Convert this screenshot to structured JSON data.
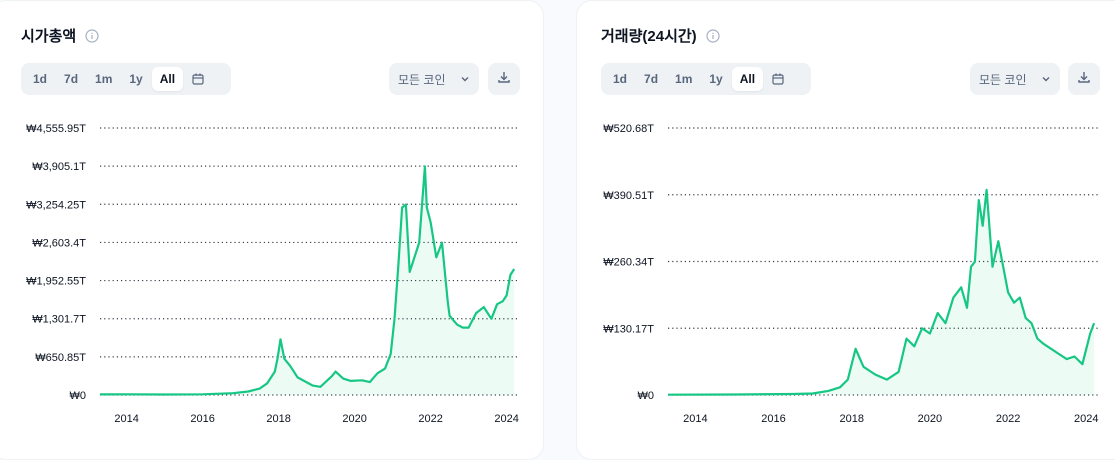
{
  "cards": [
    {
      "title": "시가총액",
      "ranges": [
        "1d",
        "7d",
        "1m",
        "1y",
        "All"
      ],
      "active_range": "All",
      "coin_filter": "모든 코인",
      "icons": {
        "info": "info-icon",
        "calendar": "calendar-icon",
        "chevron": "chevron-down-icon",
        "download": "download-icon"
      }
    },
    {
      "title": "거래량(24시간)",
      "ranges": [
        "1d",
        "7d",
        "1m",
        "1y",
        "All"
      ],
      "active_range": "All",
      "coin_filter": "모든 코인",
      "icons": {
        "info": "info-icon",
        "calendar": "calendar-icon",
        "chevron": "chevron-down-icon",
        "download": "download-icon"
      }
    }
  ],
  "colors": {
    "line": "#16c784",
    "grid": "#3a3f4a",
    "text": "#0d1421",
    "muted": "#58667e"
  },
  "chart_data": [
    {
      "type": "area",
      "title": "시가총액",
      "currency": "₩",
      "y_ticks": [
        "₩0",
        "₩650.85T",
        "₩1,301.7T",
        "₩1,952.55T",
        "₩2,603.4T",
        "₩3,254.25T",
        "₩3,905.1T",
        "₩4,555.95T"
      ],
      "x_ticks": [
        "2014",
        "2016",
        "2018",
        "2020",
        "2022",
        "2024"
      ],
      "ylim": [
        0,
        4555.95
      ],
      "xlim": [
        2013.3,
        2024.3
      ],
      "grid": "dotted horizontal",
      "unit": "T",
      "series": [
        {
          "x": [
            2013.3,
            2014.0,
            2015.0,
            2016.0,
            2016.8,
            2017.2,
            2017.5,
            2017.7,
            2017.9,
            2017.97,
            2018.05,
            2018.15,
            2018.3,
            2018.5,
            2018.9,
            2019.1,
            2019.4,
            2019.5,
            2019.7,
            2019.9,
            2020.2,
            2020.4,
            2020.6,
            2020.8,
            2020.95,
            2021.05,
            2021.15,
            2021.25,
            2021.35,
            2021.45,
            2021.55,
            2021.7,
            2021.85,
            2021.9,
            2022.0,
            2022.15,
            2022.3,
            2022.45,
            2022.5,
            2022.7,
            2022.85,
            2023.0,
            2023.2,
            2023.4,
            2023.6,
            2023.75,
            2023.9,
            2024.0,
            2024.1,
            2024.2
          ],
          "y": [
            10,
            12,
            8,
            12,
            30,
            60,
            110,
            200,
            400,
            620,
            950,
            620,
            500,
            300,
            160,
            140,
            320,
            400,
            280,
            240,
            250,
            220,
            370,
            450,
            700,
            1300,
            2200,
            3200,
            3250,
            2100,
            2300,
            2600,
            3900,
            3200,
            2950,
            2350,
            2600,
            1600,
            1350,
            1200,
            1150,
            1150,
            1400,
            1500,
            1300,
            1550,
            1600,
            1700,
            2050,
            2150
          ]
        }
      ]
    },
    {
      "type": "area",
      "title": "거래량(24시간)",
      "currency": "₩",
      "y_ticks": [
        "₩0",
        "₩130.17T",
        "₩260.34T",
        "₩390.51T",
        "₩520.68T"
      ],
      "x_ticks": [
        "2014",
        "2016",
        "2018",
        "2020",
        "2022",
        "2024"
      ],
      "ylim": [
        0,
        520.68
      ],
      "xlim": [
        2013.3,
        2024.3
      ],
      "grid": "dotted horizontal",
      "unit": "T",
      "series": [
        {
          "x": [
            2013.3,
            2015.0,
            2016.5,
            2017.0,
            2017.4,
            2017.7,
            2017.9,
            2018.0,
            2018.1,
            2018.3,
            2018.6,
            2018.9,
            2019.2,
            2019.4,
            2019.6,
            2019.8,
            2020.0,
            2020.2,
            2020.4,
            2020.6,
            2020.8,
            2020.95,
            2021.05,
            2021.15,
            2021.25,
            2021.35,
            2021.45,
            2021.6,
            2021.75,
            2021.9,
            2022.0,
            2022.15,
            2022.3,
            2022.45,
            2022.6,
            2022.75,
            2022.9,
            2023.1,
            2023.3,
            2023.5,
            2023.7,
            2023.9,
            2024.0,
            2024.1,
            2024.2
          ],
          "y": [
            0.5,
            1,
            2,
            3,
            8,
            15,
            30,
            60,
            90,
            55,
            40,
            30,
            45,
            110,
            95,
            130,
            120,
            160,
            140,
            190,
            210,
            170,
            250,
            260,
            380,
            330,
            400,
            250,
            300,
            240,
            200,
            180,
            190,
            150,
            140,
            110,
            100,
            90,
            80,
            70,
            75,
            60,
            90,
            120,
            140
          ]
        }
      ]
    }
  ]
}
